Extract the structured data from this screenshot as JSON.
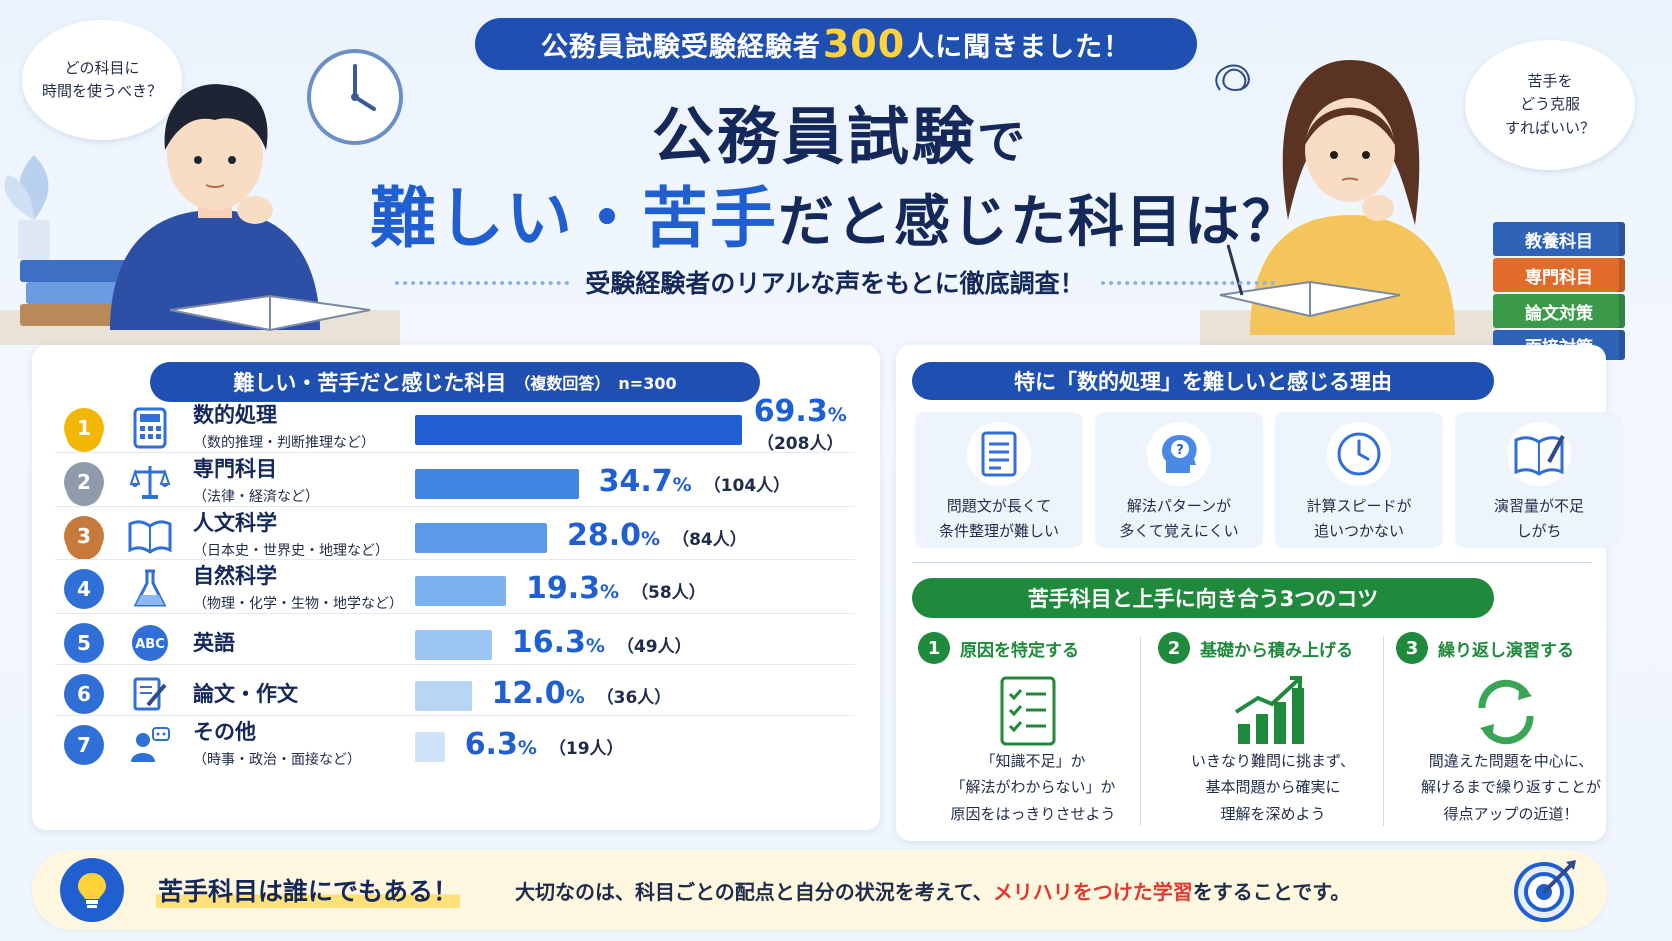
{
  "header": {
    "banner_pre": "公務員試験受験経験者",
    "banner_num": "300",
    "banner_post": "人に聞きました！",
    "title_line1_main": "公務員試験",
    "title_line1_tail": "で",
    "title_line2_a": "難しい・苦手",
    "title_line2_b": "だと感じた科目は？",
    "subtitle": "受験経験者のリアルな声をもとに徹底調査！"
  },
  "bubbles": {
    "left_l1": "どの科目に",
    "left_l2": "時間を使うべき？",
    "right_l1": "苦手を",
    "right_l2": "どう克服",
    "right_l3": "すればいい？"
  },
  "books": [
    "教養科目",
    "専門科目",
    "論文対策",
    "面接対策"
  ],
  "book_colors": [
    "#2e63b8",
    "#e06b2b",
    "#3a9a4a",
    "#2e63b8"
  ],
  "left_panel": {
    "title": "難しい・苦手だと感じた科目",
    "title_note": "（複数回答）　n=300"
  },
  "chart_data": {
    "type": "bar",
    "title": "難しい・苦手だと感じた科目（複数回答）　n=300",
    "categories": [
      "数的処理",
      "専門科目",
      "人文科学",
      "自然科学",
      "英語",
      "論文・作文",
      "その他"
    ],
    "subcategories": [
      "（数的推理・判断推理など）",
      "（法律・経済など）",
      "（日本史・世界史・地理など）",
      "（物理・化学・生物・地学など）",
      "",
      "",
      "（時事・政治・面接など）"
    ],
    "values": [
      69.3,
      34.7,
      28.0,
      19.3,
      16.3,
      12.0,
      6.3
    ],
    "value_labels": [
      "69.3",
      "34.7",
      "28.0",
      "19.3",
      "16.3",
      "12.0",
      "6.3"
    ],
    "unit": "%",
    "counts": [
      "（208人）",
      "（104人）",
      "（84人）",
      "（58人）",
      "（49人）",
      "（36人）",
      "（19人）"
    ],
    "ranks": [
      "1",
      "2",
      "3",
      "4",
      "5",
      "6",
      "7"
    ],
    "icons": [
      "calculator-icon",
      "scales-icon",
      "book-icon",
      "flask-icon",
      "abc-icon",
      "writing-icon",
      "people-chat-icon"
    ],
    "bar_colors": [
      "#1f5fd0",
      "#3f86e2",
      "#5b9ae8",
      "#7cb2ee",
      "#9cc5f2",
      "#b7d5f5",
      "#cfe3f8"
    ],
    "rank_colors": [
      "#f2b705",
      "#8f9bab",
      "#c57a3c",
      "#2f6fd6",
      "#2f6fd6",
      "#2f6fd6",
      "#2f6fd6"
    ],
    "xlim": [
      0,
      70
    ]
  },
  "reasons": {
    "title": "特に「数的処理」を難しいと感じる理由",
    "items": [
      {
        "l1": "問題文が長くて",
        "l2": "条件整理が難しい",
        "icon": "document-icon"
      },
      {
        "l1": "解法パターンが",
        "l2": "多くて覚えにくい",
        "icon": "thinking-head-icon"
      },
      {
        "l1": "計算スピードが",
        "l2": "追いつかない",
        "icon": "clock-icon"
      },
      {
        "l1": "演習量が不足",
        "l2": "しがち",
        "icon": "notebook-icon"
      }
    ]
  },
  "tips": {
    "title": "苦手科目と上手に向き合う3つのコツ",
    "items": [
      {
        "num": "1",
        "head": "原因を特定する",
        "l1": "「知識不足」か",
        "l2": "「解法がわからない」か",
        "l3": "原因をはっきりさせよう",
        "icon": "checklist-icon"
      },
      {
        "num": "2",
        "head": "基礎から積み上げる",
        "l1": "いきなり難問に挑まず、",
        "l2": "基本問題から確実に",
        "l3": "理解を深めよう",
        "icon": "growth-chart-icon"
      },
      {
        "num": "3",
        "head": "繰り返し演習する",
        "l1": "間違えた問題を中心に、",
        "l2": "解けるまで繰り返すことが",
        "l3": "得点アップの近道！",
        "icon": "repeat-icon"
      }
    ]
  },
  "footer": {
    "head": "苦手科目は誰にでもある！",
    "text_a": "大切なのは、科目ごとの配点と自分の状況を考えて、",
    "text_red": "メリハリをつけた学習",
    "text_b": "をすることです。"
  },
  "colors": {
    "primary": "#1f4fb0",
    "accent_blue": "#1f5fd0",
    "green": "#1f8a3c",
    "red": "#e03a2e",
    "highlight": "#ffe17a"
  }
}
